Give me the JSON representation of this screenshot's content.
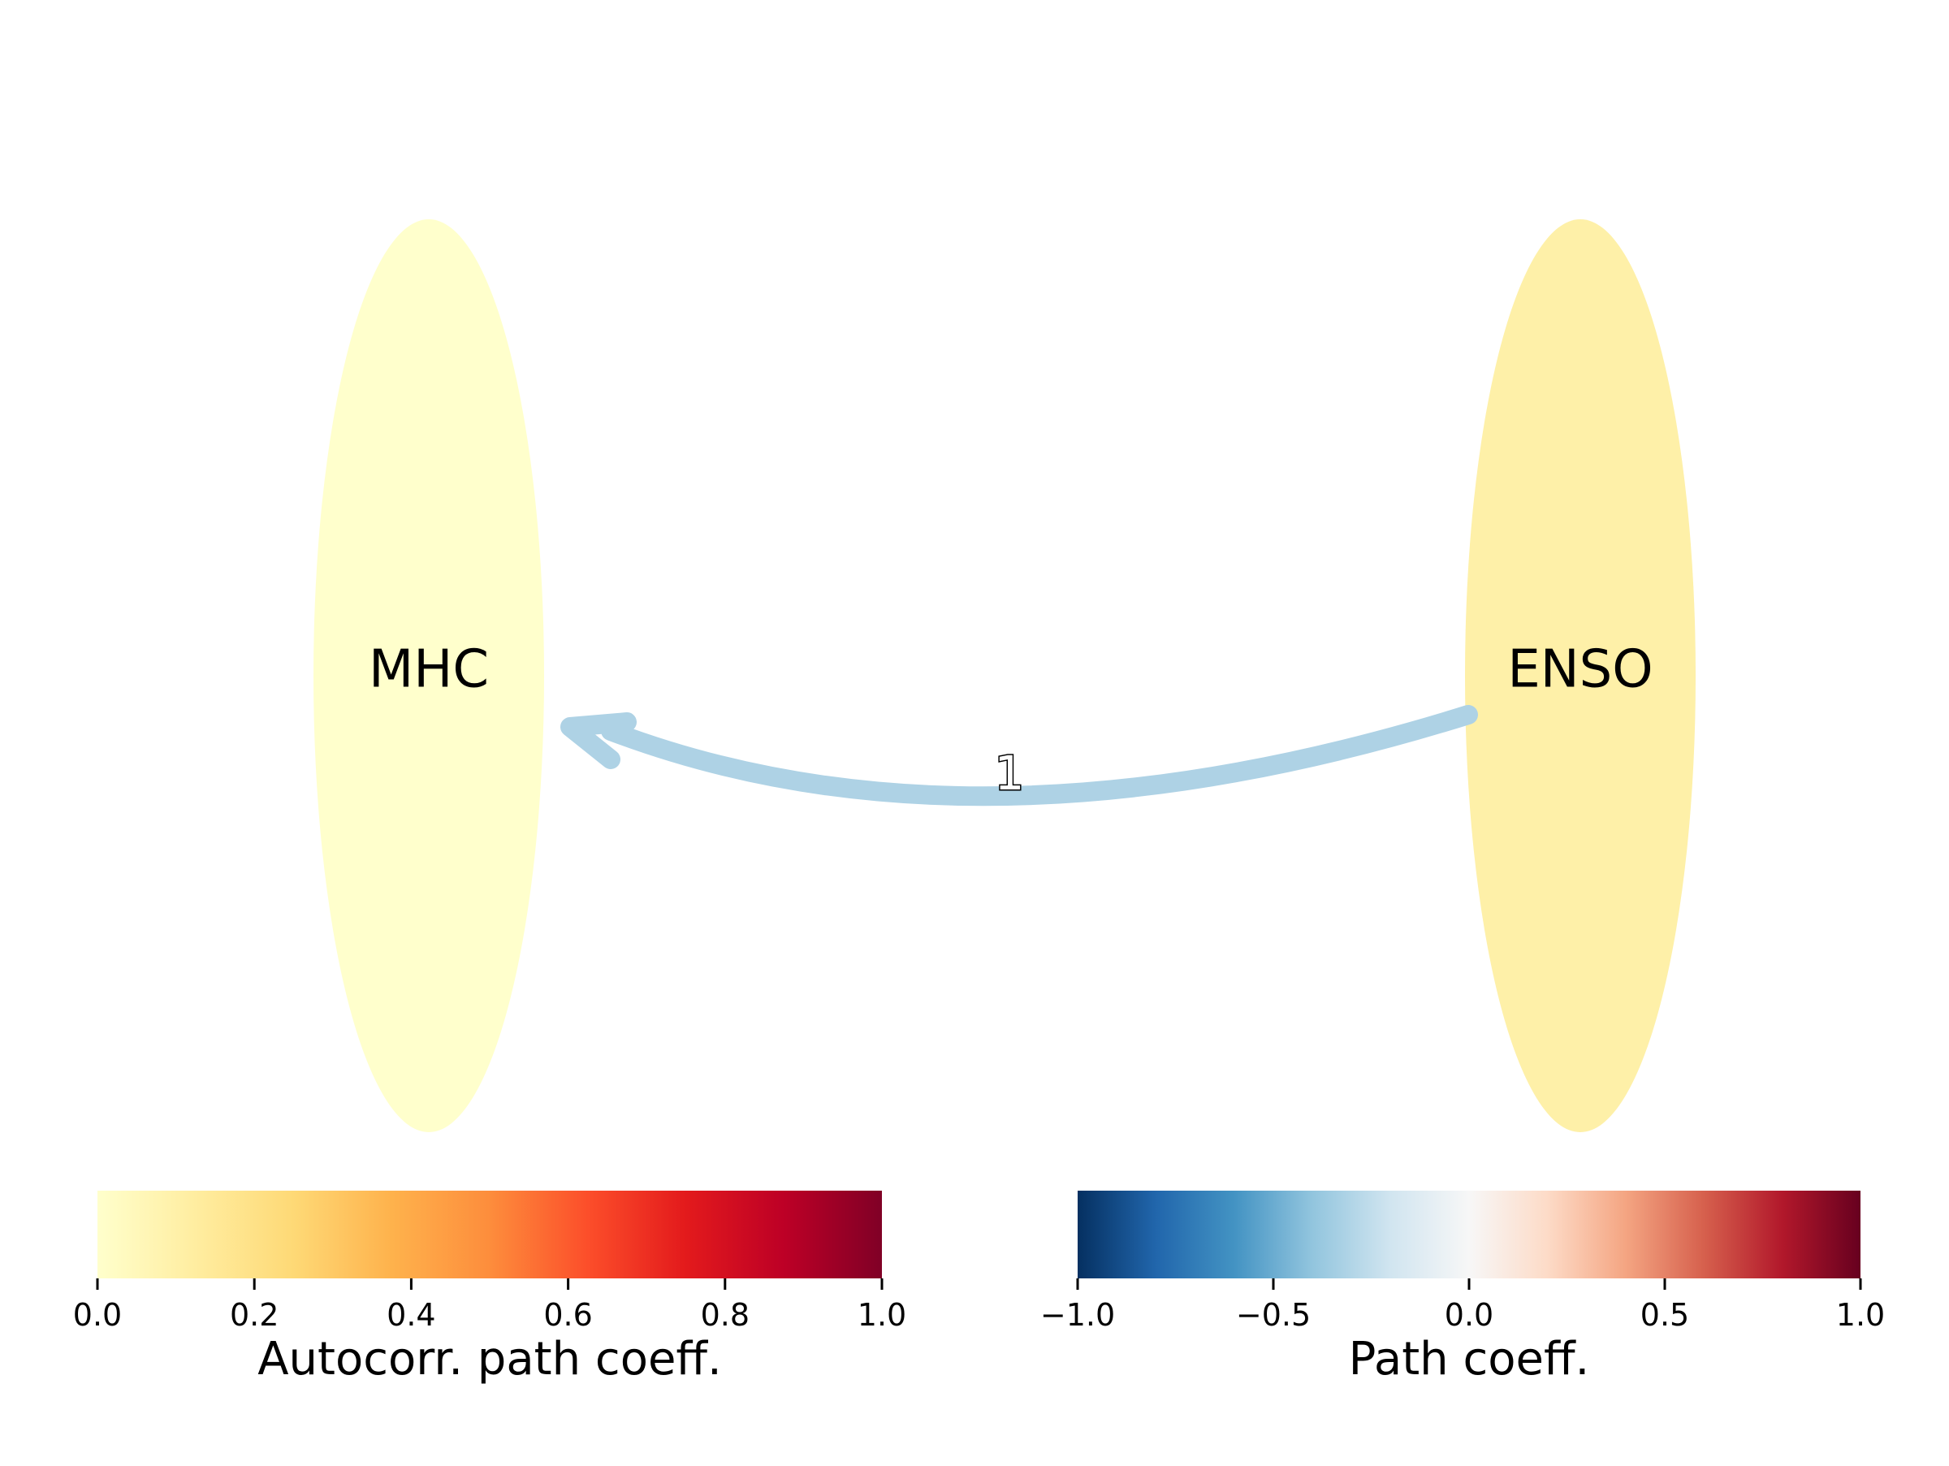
{
  "nodes": [
    {
      "id": "mhc",
      "label": "MHC",
      "autocorr": 0.01
    },
    {
      "id": "enso",
      "label": "ENSO",
      "autocorr": 0.09
    }
  ],
  "edges": [
    {
      "from": "ENSO",
      "to": "MHC",
      "lag_label": "1",
      "path_coeff": -0.3
    }
  ],
  "colorbars": {
    "autocorr": {
      "label": "Autocorr. path coeff.",
      "ticks": [
        "0.0",
        "0.2",
        "0.4",
        "0.6",
        "0.8",
        "1.0"
      ],
      "range": [
        0.0,
        1.0
      ],
      "colormap": "YlOrRd",
      "stops": [
        "#ffffcc",
        "#ffeda0",
        "#fed976",
        "#feb24c",
        "#fd8d3c",
        "#fc4e2a",
        "#e31a1c",
        "#bd0026",
        "#800026"
      ]
    },
    "path": {
      "label": "Path coeff.",
      "ticks": [
        "−1.0",
        "−0.5",
        "0.0",
        "0.5",
        "1.0"
      ],
      "range": [
        -1.0,
        1.0
      ],
      "colormap": "RdBu_r",
      "stops": [
        "#053061",
        "#2166ac",
        "#4393c3",
        "#92c5de",
        "#d1e5f0",
        "#f7f7f7",
        "#fddbc7",
        "#f4a582",
        "#d6604d",
        "#b2182b",
        "#67001f"
      ]
    }
  },
  "colors": {
    "mhc_node": "#ffffcc",
    "enso_node": "#fef0a8",
    "edge": "#aed2e5"
  }
}
